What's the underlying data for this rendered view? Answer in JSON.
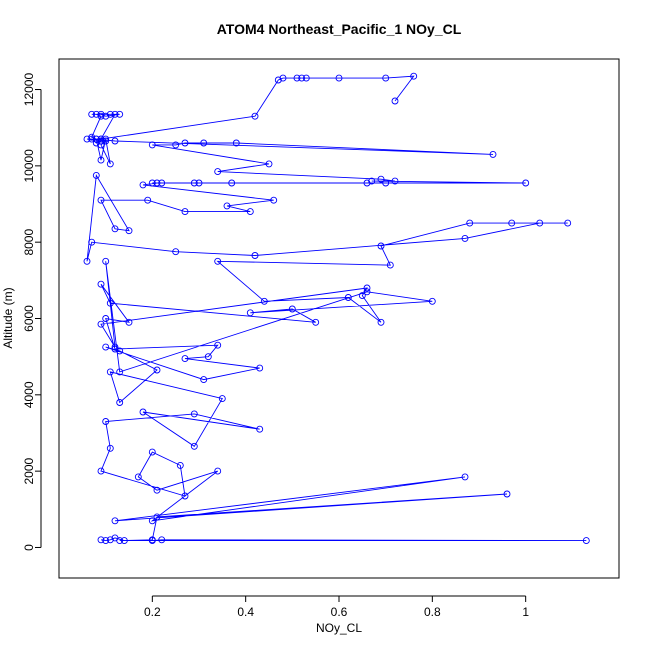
{
  "chart_data": {
    "type": "line",
    "title": "ATOM4 Northeast_Pacific_1 NOy_CL",
    "xlabel": "NOy_CL",
    "ylabel": "Altitude (m)",
    "xlim": [
      0.0,
      1.2
    ],
    "ylim": [
      -800,
      12800
    ],
    "xticks": [
      0.2,
      0.4,
      0.6,
      0.8,
      1.0
    ],
    "yticks": [
      0,
      2000,
      4000,
      6000,
      8000,
      10000,
      12000
    ],
    "grid": false,
    "legend": "none",
    "series_color": "#0000ff",
    "marker": "open-circle",
    "series": [
      {
        "x": [
          0.09,
          0.1,
          0.11,
          0.12,
          0.14,
          0.2,
          0.22,
          1.13,
          0.13,
          0.2,
          0.21,
          0.96,
          0.12,
          0.87,
          0.2,
          0.34,
          0.21,
          0.17,
          0.2,
          0.26,
          0.27,
          0.09,
          0.11,
          0.1,
          0.29,
          0.43,
          0.18,
          0.29,
          0.35,
          0.11,
          0.13,
          0.21,
          0.13,
          0.1,
          0.31,
          0.43,
          0.27,
          0.32,
          0.34,
          0.12,
          0.1,
          0.15,
          0.09,
          0.11,
          0.55,
          0.5,
          0.41,
          0.8,
          0.66,
          0.13,
          0.1,
          0.12,
          0.09,
          0.66,
          0.65,
          0.69,
          0.62,
          0.44,
          0.34,
          0.71,
          0.69,
          0.88,
          0.97,
          1.09,
          1.03,
          0.87,
          0.42,
          0.25,
          0.07,
          0.06,
          0.08,
          0.15,
          0.12,
          0.09,
          0.19,
          0.27,
          0.41,
          0.36,
          0.46,
          0.18,
          0.21,
          0.2,
          0.22,
          0.3,
          0.29,
          0.37,
          0.66,
          0.7,
          1.0,
          0.67,
          0.72,
          0.69,
          0.34,
          0.45,
          0.2,
          0.25,
          0.27,
          0.31,
          0.38,
          0.93,
          0.12,
          0.08,
          0.06,
          0.1,
          0.09,
          0.11,
          0.1,
          0.09,
          0.08,
          0.09,
          0.12,
          0.07,
          0.09,
          0.1,
          0.13,
          0.11,
          0.08,
          0.09,
          0.07,
          0.09,
          0.08,
          0.07,
          0.09,
          0.42,
          0.47,
          0.48,
          0.51,
          0.52,
          0.53,
          0.6,
          0.7,
          0.76,
          0.72
        ],
        "y": [
          200,
          180,
          200,
          250,
          180,
          180,
          200,
          180,
          180,
          200,
          800,
          1400,
          700,
          1850,
          700,
          2000,
          1500,
          1850,
          2500,
          2150,
          1350,
          2000,
          2600,
          3300,
          3500,
          3100,
          3550,
          2650,
          3900,
          4600,
          3800,
          4650,
          5150,
          5250,
          4400,
          4700,
          4950,
          5000,
          5300,
          5200,
          6000,
          5900,
          6900,
          6400,
          5900,
          6250,
          6150,
          6450,
          6700,
          4600,
          7500,
          5250,
          5850,
          6800,
          6600,
          5900,
          6550,
          6450,
          7500,
          7400,
          7900,
          8500,
          8500,
          8500,
          8500,
          8100,
          7650,
          7750,
          8000,
          7500,
          9750,
          8300,
          8350,
          9100,
          9100,
          8800,
          8800,
          8950,
          9100,
          9500,
          9550,
          9550,
          9550,
          9550,
          9550,
          9550,
          9550,
          9550,
          9550,
          9600,
          9600,
          9650,
          9850,
          10050,
          10550,
          10550,
          10600,
          10600,
          10600,
          10300,
          10650,
          10700,
          10700,
          10650,
          10550,
          10050,
          10700,
          10150,
          10700,
          10700,
          11350,
          11350,
          11350,
          11300,
          11350,
          11350,
          11350,
          11300,
          10750,
          10650,
          10600,
          10700,
          10700,
          11300,
          12250,
          12300,
          12300,
          12300,
          12300,
          12300,
          12300,
          12350,
          11700
        ]
      }
    ]
  }
}
